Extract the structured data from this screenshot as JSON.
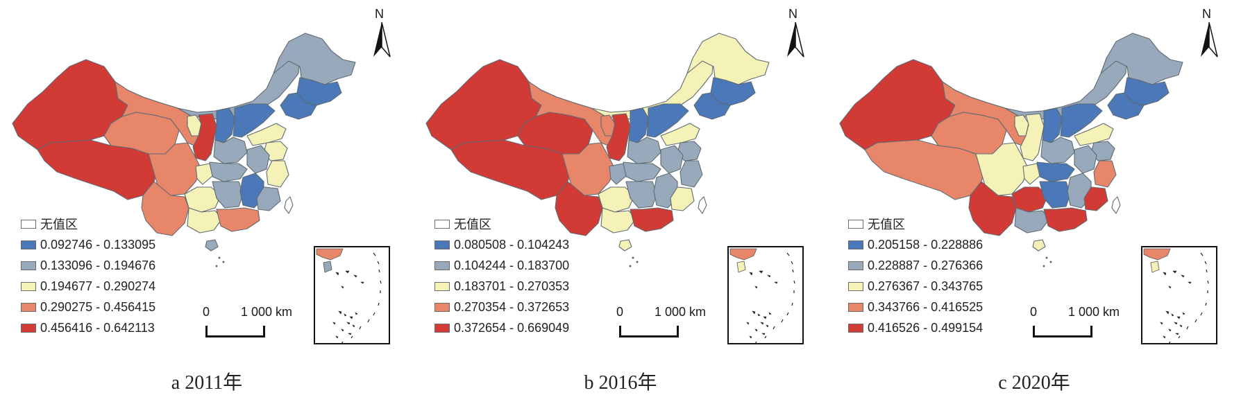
{
  "figure": {
    "panels": [
      {
        "caption": "a  2011年",
        "legend": [
          {
            "label": "无值区",
            "color": "#ffffff"
          },
          {
            "label": "0.092746 - 0.133095",
            "color": "#4a78b8"
          },
          {
            "label": "0.133096 - 0.194676",
            "color": "#97a9bb"
          },
          {
            "label": "0.194677 - 0.290274",
            "color": "#f5f2b8"
          },
          {
            "label": "0.290275 - 0.456415",
            "color": "#e8866a"
          },
          {
            "label": "0.456416 - 0.642113",
            "color": "#d23a35"
          }
        ],
        "region_classes": {
          "xinjiang": 5,
          "tibet": 5,
          "qinghai": 4,
          "gansu": 4,
          "inner_mongolia": 2,
          "heilongjiang": 2,
          "jilin": 1,
          "liaoning": 1,
          "ningxia": 3,
          "shaanxi": 5,
          "shanxi": 1,
          "hebei": 1,
          "shandong": 3,
          "henan": 2,
          "jiangsu": 3,
          "anhui": 2,
          "hubei": 2,
          "sichuan": 4,
          "chongqing": 3,
          "guizhou": 3,
          "yunnan": 4,
          "hunan": 2,
          "jiangxi": 1,
          "zhejiang": 3,
          "fujian": 2,
          "guangxi": 3,
          "guangdong": 4,
          "hainan": 2,
          "taiwan": 0
        }
      },
      {
        "caption": "b  2016年",
        "legend": [
          {
            "label": "无值区",
            "color": "#ffffff"
          },
          {
            "label": "0.080508 - 0.104243",
            "color": "#4a78b8"
          },
          {
            "label": "0.104244 - 0.183700",
            "color": "#97a9bb"
          },
          {
            "label": "0.183701 - 0.270353",
            "color": "#f5f2b8"
          },
          {
            "label": "0.270354 - 0.372653",
            "color": "#e8866a"
          },
          {
            "label": "0.372654 - 0.669049",
            "color": "#d23a35"
          }
        ],
        "region_classes": {
          "xinjiang": 5,
          "tibet": 5,
          "qinghai": 5,
          "gansu": 4,
          "inner_mongolia": 3,
          "heilongjiang": 3,
          "jilin": 1,
          "liaoning": 1,
          "ningxia": 4,
          "shaanxi": 5,
          "shanxi": 1,
          "hebei": 1,
          "shandong": 3,
          "henan": 2,
          "jiangsu": 2,
          "anhui": 2,
          "hubei": 2,
          "sichuan": 4,
          "chongqing": 2,
          "guizhou": 3,
          "yunnan": 5,
          "hunan": 2,
          "jiangxi": 2,
          "zhejiang": 2,
          "fujian": 3,
          "guangxi": 3,
          "guangdong": 5,
          "hainan": 3,
          "taiwan": 0
        }
      },
      {
        "caption": "c  2020年",
        "legend": [
          {
            "label": "无值区",
            "color": "#ffffff"
          },
          {
            "label": "0.205158 - 0.228886",
            "color": "#4a78b8"
          },
          {
            "label": "0.228887 - 0.276366",
            "color": "#97a9bb"
          },
          {
            "label": "0.276367 - 0.343765",
            "color": "#f5f2b8"
          },
          {
            "label": "0.343766 - 0.416525",
            "color": "#e8866a"
          },
          {
            "label": "0.416526 - 0.499154",
            "color": "#d23a35"
          }
        ],
        "region_classes": {
          "xinjiang": 5,
          "tibet": 4,
          "qinghai": 4,
          "gansu": 4,
          "inner_mongolia": 2,
          "heilongjiang": 2,
          "jilin": 1,
          "liaoning": 1,
          "ningxia": 3,
          "shaanxi": 3,
          "shanxi": 1,
          "hebei": 1,
          "shandong": 3,
          "henan": 2,
          "jiangsu": 2,
          "anhui": 2,
          "hubei": 1,
          "sichuan": 3,
          "chongqing": 3,
          "guizhou": 5,
          "yunnan": 5,
          "hunan": 1,
          "jiangxi": 2,
          "zhejiang": 4,
          "fujian": 5,
          "guangxi": 2,
          "guangdong": 5,
          "hainan": 3,
          "taiwan": 0
        }
      }
    ],
    "scale_bar": {
      "start": "0",
      "end": "1 000 km"
    },
    "north_arrow": {
      "label": "N"
    }
  }
}
